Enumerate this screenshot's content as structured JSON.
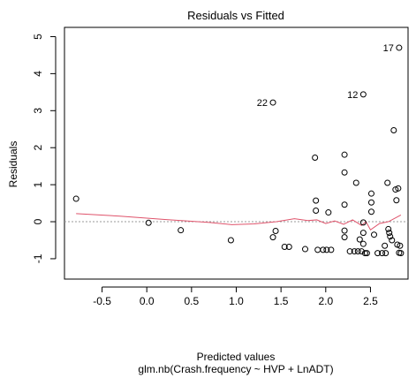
{
  "chart_data": {
    "type": "scatter",
    "title": "Residuals vs Fitted",
    "xlabel": "Predicted values",
    "subtitle": "glm.nb(Crash.frequency ~ HVP + LnADT)",
    "ylabel": "Residuals",
    "xlim": [
      -0.92,
      2.92
    ],
    "ylim": [
      -1.55,
      5.25
    ],
    "x_ticks": [
      -0.5,
      0.0,
      0.5,
      1.0,
      1.5,
      2.0,
      2.5
    ],
    "x_tick_labels": [
      "-0.5",
      "0.0",
      "0.5",
      "1.0",
      "1.5",
      "2.0",
      "2.5"
    ],
    "y_ticks": [
      -1,
      0,
      1,
      2,
      3,
      4,
      5
    ],
    "y_tick_labels": [
      "-1",
      "0",
      "1",
      "2",
      "3",
      "4",
      "5"
    ],
    "grid": false,
    "reference_line_y": 0,
    "colors": {
      "points": "#000000",
      "smooth": "#df536b",
      "reference": "#9a9a9a"
    },
    "points": [
      {
        "x": -0.79,
        "y": 0.62
      },
      {
        "x": 0.02,
        "y": -0.03
      },
      {
        "x": 0.38,
        "y": -0.23
      },
      {
        "x": 0.94,
        "y": -0.5
      },
      {
        "x": 1.41,
        "y": 3.22,
        "label": "22"
      },
      {
        "x": 1.41,
        "y": -0.42
      },
      {
        "x": 1.44,
        "y": -0.25
      },
      {
        "x": 1.54,
        "y": -0.68
      },
      {
        "x": 1.59,
        "y": -0.68
      },
      {
        "x": 1.77,
        "y": -0.74
      },
      {
        "x": 1.88,
        "y": 1.73
      },
      {
        "x": 1.89,
        "y": 0.57
      },
      {
        "x": 1.89,
        "y": 0.3
      },
      {
        "x": 1.91,
        "y": -0.76
      },
      {
        "x": 1.97,
        "y": -0.76
      },
      {
        "x": 2.01,
        "y": -0.76
      },
      {
        "x": 2.03,
        "y": 0.25
      },
      {
        "x": 2.06,
        "y": -0.76
      },
      {
        "x": 2.21,
        "y": 1.81
      },
      {
        "x": 2.21,
        "y": 1.33
      },
      {
        "x": 2.21,
        "y": 0.46
      },
      {
        "x": 2.21,
        "y": -0.24
      },
      {
        "x": 2.21,
        "y": -0.42
      },
      {
        "x": 2.27,
        "y": -0.8
      },
      {
        "x": 2.32,
        "y": -0.8
      },
      {
        "x": 2.34,
        "y": 1.05
      },
      {
        "x": 2.36,
        "y": -0.8
      },
      {
        "x": 2.38,
        "y": -0.48
      },
      {
        "x": 2.4,
        "y": -0.8
      },
      {
        "x": 2.42,
        "y": 3.44,
        "label": "12"
      },
      {
        "x": 2.42,
        "y": -0.02
      },
      {
        "x": 2.42,
        "y": -0.3
      },
      {
        "x": 2.42,
        "y": -0.6
      },
      {
        "x": 2.44,
        "y": -0.85
      },
      {
        "x": 2.46,
        "y": -0.85
      },
      {
        "x": 2.51,
        "y": 0.76
      },
      {
        "x": 2.51,
        "y": 0.52
      },
      {
        "x": 2.51,
        "y": 0.27
      },
      {
        "x": 2.54,
        "y": -0.35
      },
      {
        "x": 2.58,
        "y": -0.85
      },
      {
        "x": 2.63,
        "y": -0.85
      },
      {
        "x": 2.66,
        "y": -0.65
      },
      {
        "x": 2.67,
        "y": -0.85
      },
      {
        "x": 2.69,
        "y": 1.05
      },
      {
        "x": 2.7,
        "y": -0.2
      },
      {
        "x": 2.71,
        "y": -0.3
      },
      {
        "x": 2.72,
        "y": -0.4
      },
      {
        "x": 2.74,
        "y": -0.5
      },
      {
        "x": 2.76,
        "y": 2.47
      },
      {
        "x": 2.78,
        "y": 0.87
      },
      {
        "x": 2.79,
        "y": 0.58
      },
      {
        "x": 2.8,
        "y": -0.62
      },
      {
        "x": 2.81,
        "y": 0.9
      },
      {
        "x": 2.82,
        "y": 4.7,
        "label": "17"
      },
      {
        "x": 2.82,
        "y": -0.84
      },
      {
        "x": 2.83,
        "y": -0.65
      },
      {
        "x": 2.84,
        "y": -0.85
      }
    ],
    "smooth_line": {
      "x": [
        -0.79,
        -0.3,
        0.2,
        0.7,
        0.95,
        1.2,
        1.45,
        1.65,
        1.8,
        1.9,
        2.0,
        2.1,
        2.2,
        2.3,
        2.4,
        2.45,
        2.5,
        2.6,
        2.7,
        2.84
      ],
      "y": [
        0.22,
        0.15,
        0.06,
        -0.02,
        -0.08,
        -0.06,
        0.0,
        0.08,
        0.03,
        0.05,
        -0.05,
        0.02,
        -0.07,
        0.05,
        -0.1,
        0.0,
        -0.22,
        -0.05,
        0.0,
        0.18
      ]
    }
  }
}
